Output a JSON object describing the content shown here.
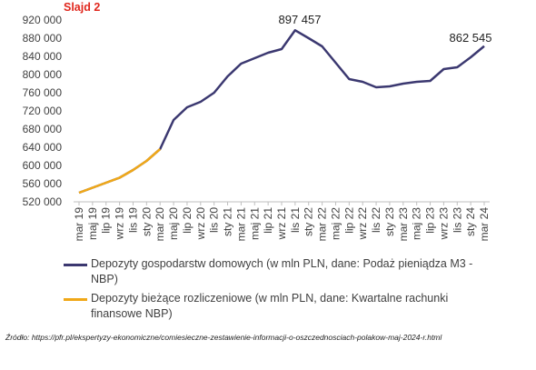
{
  "chart_data": {
    "type": "line",
    "title": "Slajd 2",
    "categories": [
      "mar 19",
      "maj 19",
      "lip 19",
      "wrz 19",
      "lis 19",
      "sty 20",
      "mar 20",
      "maj 20",
      "lip 20",
      "wrz 20",
      "lis 20",
      "sty 21",
      "mar 21",
      "maj 21",
      "lip 21",
      "wrz 21",
      "lis 21",
      "sty 22",
      "mar 22",
      "maj 22",
      "lip 22",
      "wrz 22",
      "lis 22",
      "sty 23",
      "mar 23",
      "maj 23",
      "lip 23",
      "wrz 23",
      "lis 23",
      "sty 24",
      "mar 24"
    ],
    "series": [
      {
        "name": "Depozyty gospodarstw domowych (w mln PLN, dane: Podaż pieniądza M3 - NBP)",
        "color": "#3b3870",
        "values": [
          540000,
          551000,
          562000,
          573000,
          590000,
          610000,
          636000,
          700000,
          728000,
          740000,
          760000,
          796000,
          824000,
          836000,
          848000,
          856000,
          897457,
          880000,
          862000,
          826000,
          790000,
          784000,
          772000,
          774000,
          780000,
          784000,
          786000,
          812000,
          816000,
          838000,
          862545
        ]
      },
      {
        "name": "Depozyty bieżące rozliczeniowe (w mln PLN, dane: Kwartalne rachunki finansowe NBP)",
        "color": "#f0a818",
        "values": [
          540000,
          551000,
          562000,
          573000,
          590000,
          610000,
          636000,
          null,
          null,
          null,
          null,
          null,
          null,
          null,
          null,
          null,
          null,
          null,
          null,
          null,
          null,
          null,
          null,
          null,
          null,
          null,
          null,
          null,
          null,
          null,
          null
        ]
      }
    ],
    "annotations": [
      "897 457",
      "862 545"
    ],
    "source": "Źródło: https://pfr.pl/ekspertyzy-ekonomiczne/comiesieczne-zestawienie-informacji-o-oszczednosciach-polakow-maj-2024-r.html",
    "ylim": [
      520000,
      920000
    ],
    "yticks": [
      {
        "value": 520000,
        "label": "520 000"
      },
      {
        "value": 560000,
        "label": "560 000"
      },
      {
        "value": 600000,
        "label": "600 000"
      },
      {
        "value": 640000,
        "label": "640 000"
      },
      {
        "value": 680000,
        "label": "680 000"
      },
      {
        "value": 720000,
        "label": "720 000"
      },
      {
        "value": 760000,
        "label": "760 000"
      },
      {
        "value": 800000,
        "label": "800 000"
      },
      {
        "value": 840000,
        "label": "840 000"
      },
      {
        "value": 880000,
        "label": "880 000"
      },
      {
        "value": 920000,
        "label": "920 000"
      }
    ],
    "grid": false
  }
}
